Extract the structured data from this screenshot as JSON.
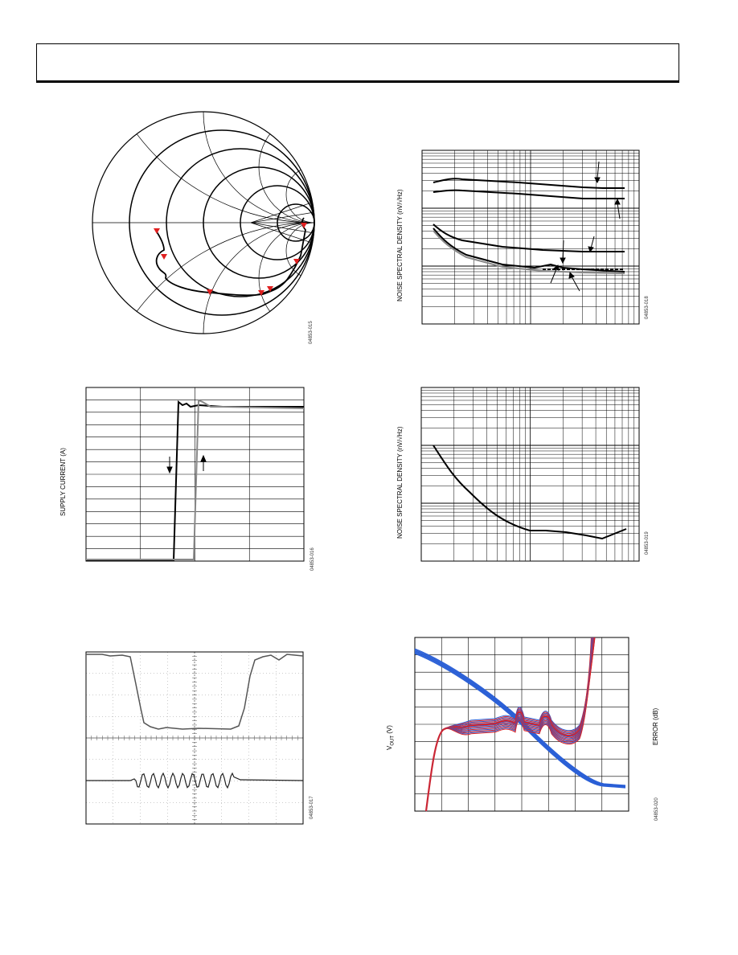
{
  "figures": {
    "smith_chart": {
      "figure_id": "04853-015"
    },
    "noise_chart_1": {
      "ylabel": "NOISE SPECTRAL DENSITY (nV/√Hz)",
      "figure_id": "04853-018"
    },
    "supply_current": {
      "ylabel": "SUPPLY CURRENT (A)",
      "figure_id": "04853-016"
    },
    "noise_chart_2": {
      "ylabel": "NOISE SPECTRAL DENSITY (nV/√Hz)",
      "figure_id": "04853-019"
    },
    "scope_trace": {
      "figure_id": "04853-017"
    },
    "vout_error": {
      "ylabel_v": "V",
      "ylabel_sub": "OUT",
      "ylabel_unit": " (V)",
      "ylabel_right": "ERROR (dB)",
      "figure_id": "04853-020"
    }
  },
  "colors": {
    "ink": "#000000",
    "grey": "#888888",
    "marker": "#e02020",
    "red": "#e02020",
    "blue": "#2a5fd6"
  }
}
